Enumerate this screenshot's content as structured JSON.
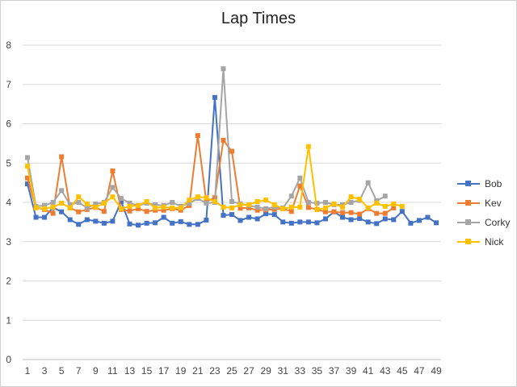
{
  "chart_data": {
    "type": "line",
    "title": "Lap Times",
    "xlabel": "",
    "ylabel": "",
    "ylim": [
      0,
      8
    ],
    "yticks": [
      0,
      1,
      2,
      3,
      4,
      5,
      6,
      7,
      8
    ],
    "xtick_labels": [
      1,
      3,
      5,
      7,
      9,
      11,
      13,
      15,
      17,
      19,
      21,
      23,
      25,
      27,
      29,
      31,
      33,
      35,
      37,
      39,
      41,
      43,
      45,
      47,
      49
    ],
    "grid": "horizontal",
    "legend_position": "right",
    "series": [
      {
        "name": "Bob",
        "color": "#4472C4",
        "marker": "square",
        "x": [
          1,
          2,
          3,
          4,
          5,
          6,
          7,
          8,
          9,
          10,
          11,
          12,
          13,
          14,
          15,
          16,
          17,
          18,
          19,
          20,
          21,
          22,
          23,
          24,
          25,
          26,
          27,
          28,
          29,
          30,
          31,
          32,
          33,
          34,
          35,
          36,
          37,
          38,
          39,
          40,
          41,
          42,
          43,
          44,
          45,
          46,
          47,
          48,
          49
        ],
        "values": [
          4.47,
          3.62,
          3.62,
          3.87,
          3.76,
          3.56,
          3.44,
          3.56,
          3.52,
          3.47,
          3.52,
          4.02,
          3.45,
          3.42,
          3.47,
          3.48,
          3.62,
          3.47,
          3.51,
          3.44,
          3.44,
          3.55,
          6.67,
          3.67,
          3.69,
          3.54,
          3.62,
          3.58,
          3.71,
          3.69,
          3.5,
          3.47,
          3.5,
          3.5,
          3.48,
          3.58,
          3.76,
          3.62,
          3.56,
          3.59,
          3.5,
          3.46,
          3.58,
          3.56,
          3.77,
          3.47,
          3.54,
          3.62,
          3.48
        ]
      },
      {
        "name": "Kev",
        "color": "#ED7D31",
        "marker": "square",
        "x": [
          1,
          2,
          3,
          4,
          5,
          6,
          7,
          8,
          9,
          10,
          11,
          12,
          13,
          14,
          15,
          16,
          17,
          18,
          19,
          20,
          21,
          22,
          23,
          24,
          25,
          26,
          27,
          28,
          29,
          30,
          31,
          32,
          33,
          34,
          35,
          36,
          37,
          38,
          39,
          40,
          41,
          42,
          43,
          44
        ],
        "values": [
          4.62,
          3.87,
          3.82,
          3.72,
          5.16,
          3.86,
          3.76,
          3.82,
          3.87,
          3.77,
          4.8,
          3.82,
          3.78,
          3.84,
          3.77,
          3.8,
          3.8,
          3.84,
          3.8,
          3.92,
          5.7,
          4.02,
          4.12,
          5.58,
          5.3,
          3.85,
          3.86,
          3.8,
          3.81,
          3.82,
          3.84,
          3.77,
          4.42,
          3.87,
          3.82,
          3.76,
          3.76,
          3.74,
          3.74,
          3.7,
          3.84,
          3.72,
          3.72,
          3.86
        ]
      },
      {
        "name": "Corky",
        "color": "#A5A5A5",
        "marker": "square",
        "x": [
          1,
          2,
          3,
          4,
          5,
          6,
          7,
          8,
          9,
          10,
          11,
          12,
          13,
          14,
          15,
          16,
          17,
          18,
          19,
          20,
          21,
          22,
          23,
          24,
          25,
          26,
          27,
          28,
          29,
          30,
          31,
          32,
          33,
          34,
          35,
          36,
          37,
          38,
          39,
          40,
          41,
          42,
          43
        ],
        "values": [
          5.14,
          3.9,
          3.92,
          4.0,
          4.3,
          3.94,
          4.0,
          3.86,
          3.96,
          4.0,
          4.38,
          4.1,
          3.98,
          3.92,
          3.98,
          3.94,
          3.92,
          4.0,
          3.9,
          3.98,
          4.1,
          3.98,
          4.0,
          7.4,
          4.02,
          3.96,
          3.92,
          3.88,
          3.84,
          3.88,
          3.86,
          4.16,
          4.62,
          4.0,
          3.98,
          4.0,
          3.94,
          3.94,
          4.0,
          4.05,
          4.5,
          4.04,
          4.16
        ]
      },
      {
        "name": "Nick",
        "color": "#FFC000",
        "marker": "square",
        "x": [
          1,
          2,
          3,
          4,
          5,
          6,
          7,
          8,
          9,
          10,
          11,
          12,
          13,
          14,
          15,
          16,
          17,
          18,
          19,
          20,
          21,
          22,
          23,
          24,
          25,
          26,
          27,
          28,
          29,
          30,
          31,
          32,
          33,
          34,
          35,
          36,
          37,
          38,
          39,
          40,
          41,
          42,
          43,
          44,
          45
        ],
        "values": [
          4.92,
          3.86,
          3.84,
          3.88,
          3.98,
          3.86,
          4.14,
          3.96,
          3.88,
          3.98,
          4.14,
          3.84,
          3.9,
          3.92,
          4.02,
          3.86,
          3.88,
          3.86,
          3.86,
          4.06,
          4.14,
          4.12,
          4.02,
          3.88,
          3.86,
          3.94,
          3.94,
          4.02,
          4.06,
          3.94,
          3.84,
          3.88,
          3.88,
          5.42,
          3.82,
          3.86,
          3.96,
          3.88,
          4.14,
          4.08,
          3.86,
          3.98,
          3.9,
          3.96,
          3.9
        ]
      }
    ]
  }
}
